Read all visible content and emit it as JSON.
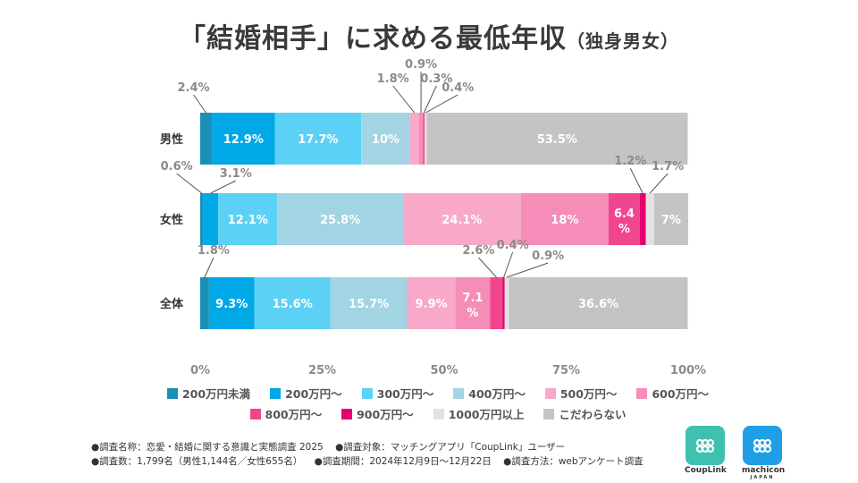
{
  "title": {
    "main": "「結婚相手」に求める最低年収",
    "sub": "（独身男女）"
  },
  "colors": {
    "background": "#ffffff"
  },
  "chart_data": {
    "type": "bar",
    "orientation": "horizontal-stacked-100",
    "categories": [
      "男性",
      "女性",
      "全体"
    ],
    "xticks": [
      "0%",
      "25%",
      "50%",
      "75%",
      "100%"
    ],
    "xlim": [
      0,
      100
    ],
    "series": [
      {
        "name": "200万円未満",
        "color": "#1a8fb8",
        "values": [
          2.4,
          0.6,
          1.8
        ],
        "labels": [
          "2.4%",
          "0.6%",
          "1.8%"
        ],
        "label_pos": [
          "out",
          "out",
          "out"
        ]
      },
      {
        "name": "200万円～",
        "color": "#00a8e6",
        "values": [
          12.9,
          3.1,
          9.3
        ],
        "labels": [
          "12.9%",
          "3.1%",
          "9.3%"
        ],
        "label_pos": [
          "in",
          "out",
          "in"
        ]
      },
      {
        "name": "300万円～",
        "color": "#5cd1f6",
        "values": [
          17.7,
          12.1,
          15.6
        ],
        "labels": [
          "17.7%",
          "12.1%",
          "15.6%"
        ],
        "label_pos": [
          "in",
          "in",
          "in"
        ]
      },
      {
        "name": "400万円～",
        "color": "#a2d4e3",
        "values": [
          10,
          25.8,
          15.7
        ],
        "labels": [
          "10%",
          "25.8%",
          "15.7%"
        ],
        "label_pos": [
          "in",
          "in",
          "in"
        ]
      },
      {
        "name": "500万円～",
        "color": "#f8a8c8",
        "values": [
          1.8,
          24.1,
          9.9
        ],
        "labels": [
          "1.8%",
          "24.1%",
          "9.9%"
        ],
        "label_pos": [
          "out",
          "in",
          "in"
        ]
      },
      {
        "name": "600万円～",
        "color": "#f68cb8",
        "values": [
          0.9,
          18,
          7.1
        ],
        "labels": [
          "0.9%",
          "18%",
          "7.1%"
        ],
        "label_pos": [
          "out",
          "in",
          "in"
        ]
      },
      {
        "name": "800万円～",
        "color": "#f0458f",
        "values": [
          0.3,
          6.4,
          2.6
        ],
        "labels": [
          "0.3%",
          "6.4%",
          "2.6%"
        ],
        "label_pos": [
          "out",
          "in",
          "out"
        ]
      },
      {
        "name": "900万円～",
        "color": "#e3006f",
        "values": [
          0.0,
          1.2,
          0.4
        ],
        "labels": [
          "",
          "1.2%",
          "0.4%"
        ],
        "label_pos": [
          "none",
          "out",
          "out"
        ]
      },
      {
        "name": "1000万円以上",
        "color": "#e2e2e2",
        "values": [
          0.4,
          1.7,
          0.9
        ],
        "labels": [
          "0.4%",
          "1.7%",
          "0.9%"
        ],
        "label_pos": [
          "out",
          "out",
          "out"
        ]
      },
      {
        "name": "こだわらない",
        "color": "#c4c4c4",
        "values": [
          53.5,
          7,
          36.6
        ],
        "labels": [
          "53.5%",
          "7%",
          "36.6%"
        ],
        "label_pos": [
          "in",
          "in",
          "in"
        ]
      }
    ]
  },
  "legend": [
    {
      "label": "200万円未満",
      "color": "#1a8fb8"
    },
    {
      "label": "200万円～",
      "color": "#00a8e6"
    },
    {
      "label": "300万円～",
      "color": "#5cd1f6"
    },
    {
      "label": "400万円～",
      "color": "#a2d4e3"
    },
    {
      "label": "500万円～",
      "color": "#f8a8c8"
    },
    {
      "label": "600万円～",
      "color": "#f68cb8"
    },
    {
      "label": "800万円～",
      "color": "#f0458f"
    },
    {
      "label": "900万円～",
      "color": "#e3006f"
    },
    {
      "label": "1000万円以上",
      "color": "#e2e2e2"
    },
    {
      "label": "こだわらない",
      "color": "#c4c4c4"
    }
  ],
  "notes": {
    "survey_name": "●調査名称：恋愛・結婚に関する意識と実態調査 2025",
    "target": "●調査対象：マッチングアプリ「CoupLink」ユーザー",
    "count": "●調査数：1,799名（男性1,144名／女性655名）",
    "period": "●調査期間：2024年12月9日～12月22日",
    "method": "●調査方法：webアンケート調査"
  },
  "logos": [
    {
      "name": "CoupLink",
      "color": "#3fc1b0"
    },
    {
      "name": "machicon",
      "sub": "JAPAN",
      "color": "#1e9fe8"
    }
  ]
}
